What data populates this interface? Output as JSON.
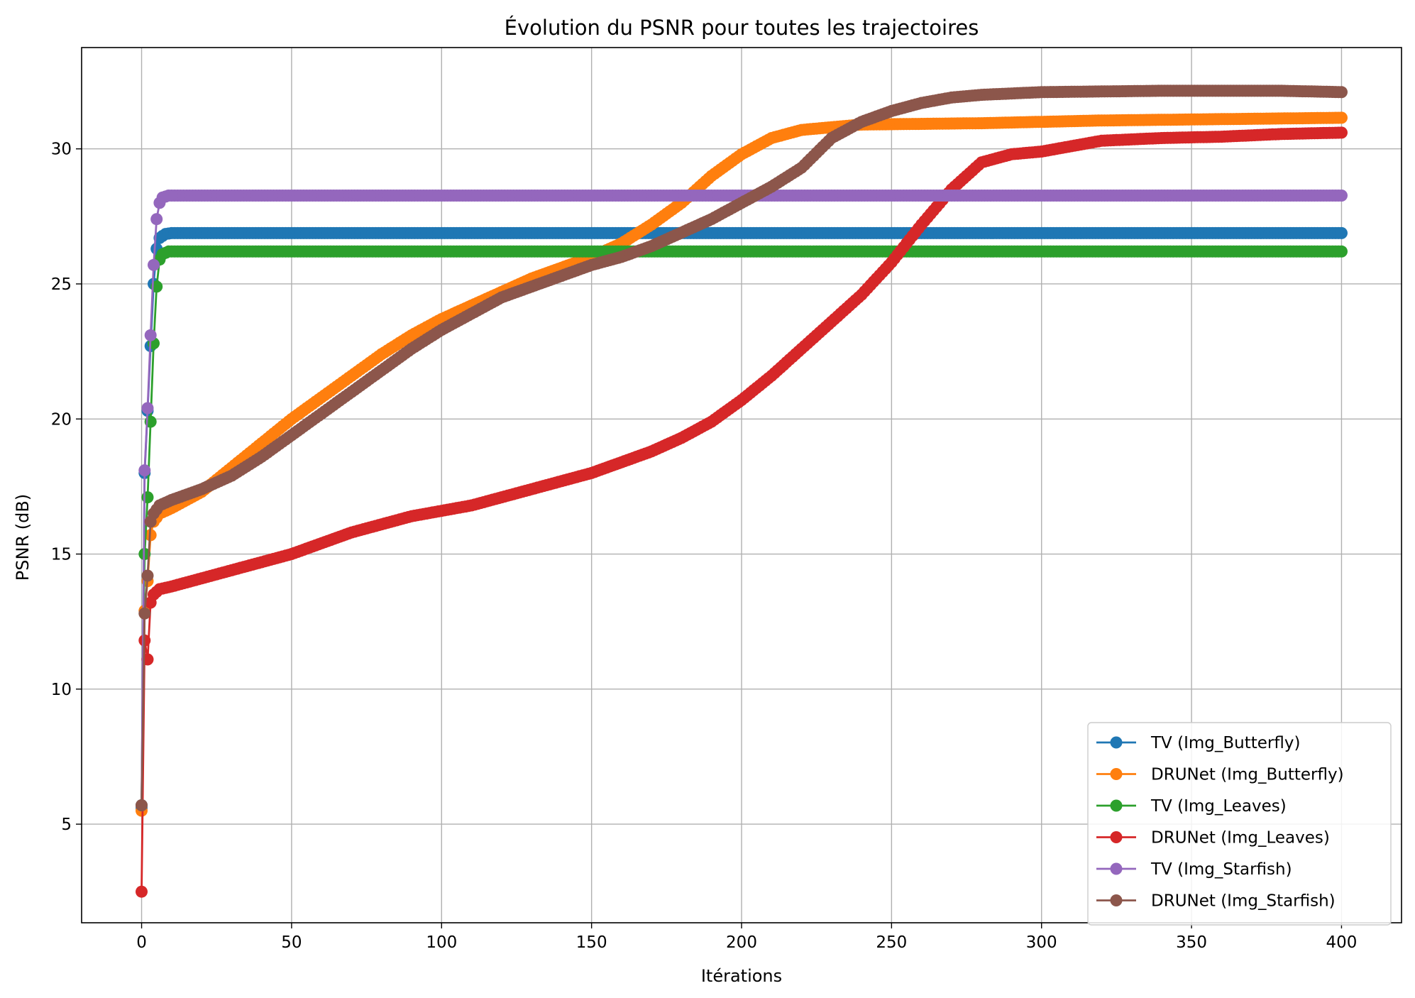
{
  "chart_data": {
    "type": "line",
    "title": "Évolution du PSNR pour toutes les trajectoires",
    "xlabel": "Itérations",
    "ylabel": "PSNR (dB)",
    "xlim": [
      -20,
      420
    ],
    "ylim": [
      1.35,
      33.75
    ],
    "xticks": [
      0,
      50,
      100,
      150,
      200,
      250,
      300,
      350,
      400
    ],
    "yticks": [
      5,
      10,
      15,
      20,
      25,
      30
    ],
    "grid": true,
    "legend_position": "lower-right",
    "marker": "circle",
    "series": [
      {
        "name": "TV (Img_Butterfly)",
        "color": "#1f77b4",
        "points": [
          [
            0,
            5.6
          ],
          [
            1,
            18.0
          ],
          [
            2,
            20.3
          ],
          [
            3,
            22.7
          ],
          [
            4,
            25.0
          ],
          [
            5,
            26.3
          ],
          [
            6,
            26.7
          ],
          [
            8,
            26.85
          ],
          [
            10,
            26.88
          ],
          [
            400,
            26.88
          ]
        ]
      },
      {
        "name": "DRUNet (Img_Butterfly)",
        "color": "#ff7f0e",
        "points": [
          [
            0,
            5.5
          ],
          [
            1,
            12.9
          ],
          [
            2,
            14.0
          ],
          [
            3,
            15.7
          ],
          [
            4,
            16.2
          ],
          [
            6,
            16.5
          ],
          [
            10,
            16.7
          ],
          [
            20,
            17.3
          ],
          [
            30,
            18.2
          ],
          [
            40,
            19.1
          ],
          [
            50,
            20.0
          ],
          [
            60,
            20.8
          ],
          [
            70,
            21.6
          ],
          [
            80,
            22.4
          ],
          [
            90,
            23.1
          ],
          [
            100,
            23.7
          ],
          [
            110,
            24.2
          ],
          [
            120,
            24.7
          ],
          [
            130,
            25.2
          ],
          [
            140,
            25.6
          ],
          [
            150,
            26.0
          ],
          [
            160,
            26.5
          ],
          [
            170,
            27.2
          ],
          [
            180,
            28.0
          ],
          [
            190,
            29.0
          ],
          [
            200,
            29.8
          ],
          [
            210,
            30.4
          ],
          [
            220,
            30.7
          ],
          [
            240,
            30.9
          ],
          [
            280,
            30.95
          ],
          [
            320,
            31.05
          ],
          [
            360,
            31.1
          ],
          [
            400,
            31.15
          ]
        ]
      },
      {
        "name": "TV (Img_Leaves)",
        "color": "#2ca02c",
        "points": [
          [
            0,
            5.7
          ],
          [
            1,
            15.0
          ],
          [
            2,
            17.1
          ],
          [
            3,
            19.9
          ],
          [
            4,
            22.8
          ],
          [
            5,
            24.9
          ],
          [
            6,
            25.9
          ],
          [
            7,
            26.1
          ],
          [
            9,
            26.2
          ],
          [
            400,
            26.2
          ]
        ]
      },
      {
        "name": "DRUNet (Img_Leaves)",
        "color": "#d62728",
        "points": [
          [
            0,
            2.5
          ],
          [
            1,
            11.8
          ],
          [
            2,
            11.1
          ],
          [
            3,
            13.2
          ],
          [
            4,
            13.5
          ],
          [
            6,
            13.7
          ],
          [
            10,
            13.8
          ],
          [
            20,
            14.1
          ],
          [
            30,
            14.4
          ],
          [
            40,
            14.7
          ],
          [
            50,
            15.0
          ],
          [
            60,
            15.4
          ],
          [
            70,
            15.8
          ],
          [
            80,
            16.1
          ],
          [
            90,
            16.4
          ],
          [
            100,
            16.6
          ],
          [
            110,
            16.8
          ],
          [
            120,
            17.1
          ],
          [
            130,
            17.4
          ],
          [
            140,
            17.7
          ],
          [
            150,
            18.0
          ],
          [
            160,
            18.4
          ],
          [
            170,
            18.8
          ],
          [
            180,
            19.3
          ],
          [
            190,
            19.9
          ],
          [
            200,
            20.7
          ],
          [
            210,
            21.6
          ],
          [
            220,
            22.6
          ],
          [
            230,
            23.6
          ],
          [
            240,
            24.6
          ],
          [
            250,
            25.8
          ],
          [
            260,
            27.2
          ],
          [
            270,
            28.5
          ],
          [
            280,
            29.5
          ],
          [
            290,
            29.8
          ],
          [
            300,
            29.9
          ],
          [
            310,
            30.1
          ],
          [
            320,
            30.3
          ],
          [
            340,
            30.4
          ],
          [
            360,
            30.45
          ],
          [
            380,
            30.55
          ],
          [
            400,
            30.6
          ]
        ]
      },
      {
        "name": "TV (Img_Starfish)",
        "color": "#9467bd",
        "points": [
          [
            0,
            5.7
          ],
          [
            1,
            18.1
          ],
          [
            2,
            20.4
          ],
          [
            3,
            23.1
          ],
          [
            4,
            25.7
          ],
          [
            5,
            27.4
          ],
          [
            6,
            28.0
          ],
          [
            7,
            28.2
          ],
          [
            9,
            28.27
          ],
          [
            400,
            28.27
          ]
        ]
      },
      {
        "name": "DRUNet (Img_Starfish)",
        "color": "#8c564b",
        "points": [
          [
            0,
            5.7
          ],
          [
            1,
            12.8
          ],
          [
            2,
            14.2
          ],
          [
            3,
            16.2
          ],
          [
            4,
            16.5
          ],
          [
            6,
            16.8
          ],
          [
            10,
            17.0
          ],
          [
            20,
            17.4
          ],
          [
            30,
            17.9
          ],
          [
            40,
            18.6
          ],
          [
            50,
            19.4
          ],
          [
            60,
            20.2
          ],
          [
            70,
            21.0
          ],
          [
            80,
            21.8
          ],
          [
            90,
            22.6
          ],
          [
            100,
            23.3
          ],
          [
            110,
            23.9
          ],
          [
            120,
            24.5
          ],
          [
            130,
            24.9
          ],
          [
            140,
            25.3
          ],
          [
            150,
            25.7
          ],
          [
            160,
            26.0
          ],
          [
            170,
            26.4
          ],
          [
            180,
            26.9
          ],
          [
            190,
            27.4
          ],
          [
            200,
            28.0
          ],
          [
            210,
            28.6
          ],
          [
            220,
            29.3
          ],
          [
            230,
            30.4
          ],
          [
            240,
            31.0
          ],
          [
            250,
            31.4
          ],
          [
            260,
            31.7
          ],
          [
            270,
            31.9
          ],
          [
            280,
            32.0
          ],
          [
            300,
            32.1
          ],
          [
            340,
            32.15
          ],
          [
            380,
            32.15
          ],
          [
            400,
            32.1
          ]
        ]
      }
    ]
  }
}
